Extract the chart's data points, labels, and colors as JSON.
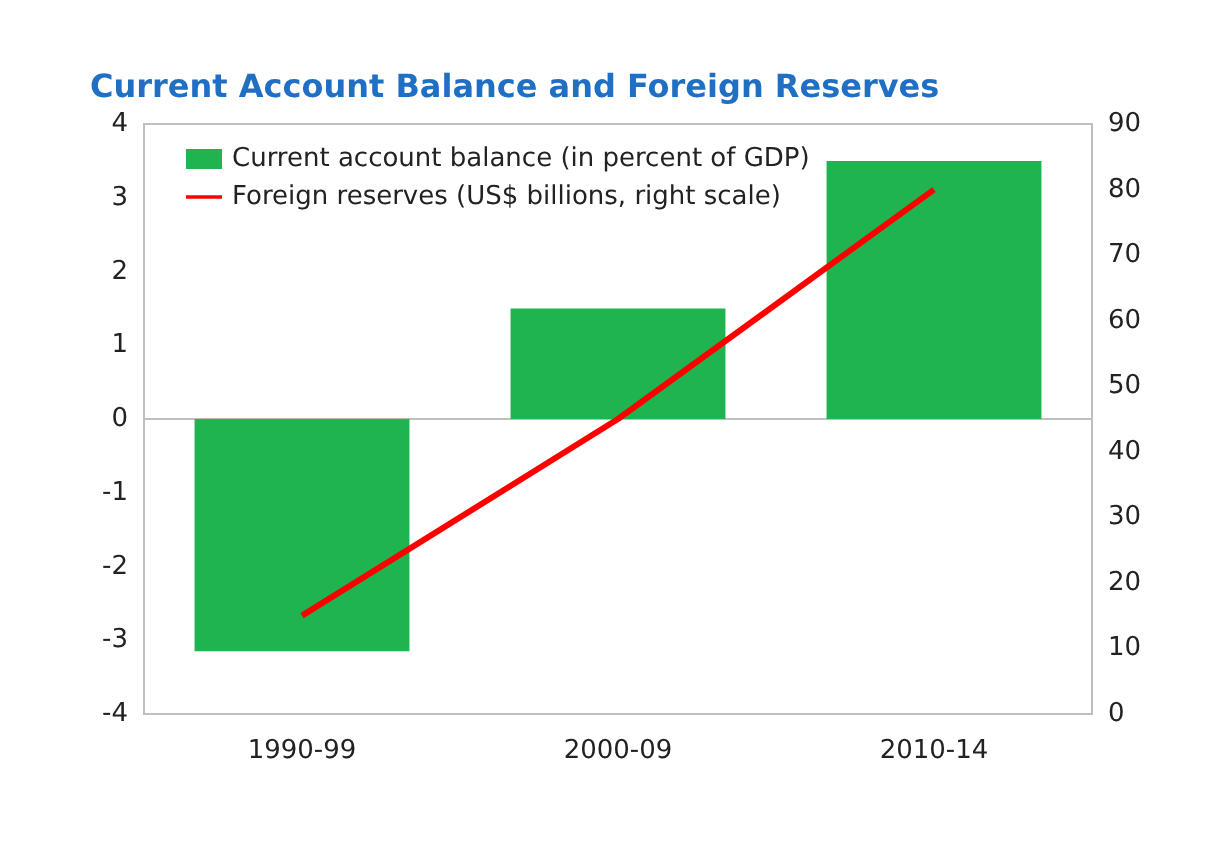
{
  "chart_data": {
    "type": "bar",
    "title": "Current Account Balance and Foreign Reserves",
    "categories": [
      "1990-99",
      "2000-09",
      "2010-14"
    ],
    "series": [
      {
        "name": "Current account balance (in percent of GDP)",
        "color": "#1fb450",
        "values": [
          -3.15,
          1.5,
          3.5
        ]
      },
      {
        "name": "Foreign reserves (US$ billions, right scale)",
        "type": "line",
        "axis": "y2",
        "color": "#ff0000",
        "values": [
          15,
          45,
          80
        ]
      }
    ],
    "ylim": [
      -4,
      4
    ],
    "yticks": [
      -4,
      -3,
      -2,
      -1,
      0,
      1,
      2,
      3,
      4
    ],
    "y2lim": [
      0,
      90
    ],
    "y2ticks": [
      0,
      10,
      20,
      30,
      40,
      50,
      60,
      70,
      80,
      90
    ],
    "legend": "top left",
    "marker": "none"
  }
}
